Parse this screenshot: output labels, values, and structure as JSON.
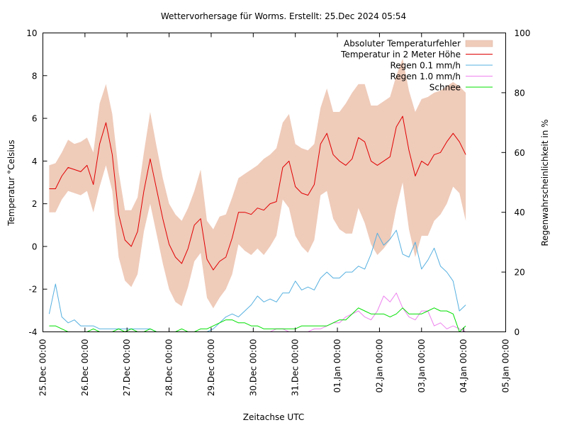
{
  "chart_data": {
    "type": "line",
    "title": "Wettervorhersage für Worms. Erstellt: 25.Dec 2024 05:54",
    "xlabel": "Zeitachse UTC",
    "ylabel": "Temperatur °Celsius",
    "y2label": "Regenwahrscheinlichkeit in %",
    "ylim": [
      -4,
      10
    ],
    "y2lim": [
      0,
      100
    ],
    "yticks": [
      "10",
      "8",
      "6",
      "4",
      "2",
      "0",
      "-2",
      "-4"
    ],
    "yticks_values": [
      10,
      8,
      6,
      4,
      2,
      0,
      -2,
      -4
    ],
    "y2ticks": [
      "100",
      "80",
      "60",
      "40",
      "20",
      "0"
    ],
    "y2ticks_values": [
      100,
      80,
      60,
      40,
      20,
      0
    ],
    "xlim_days": [
      0,
      11
    ],
    "xticks": [
      "25.Dec 00:00",
      "26.Dec 00:00",
      "27.Dec 00:00",
      "28.Dec 00:00",
      "29.Dec 00:00",
      "30.Dec 00:00",
      "31.Dec 00:00",
      "01.Jan 00:00",
      "02.Jan 00:00",
      "03.Jan 00:00",
      "04.Jan 00:00",
      "05.Jan 00:00"
    ],
    "grid": false,
    "legend_position": "top-right",
    "legend": [
      {
        "label": "Absoluter Temperaturfehler",
        "color": "#efcbba",
        "kind": "band"
      },
      {
        "label": "Temperatur in 2 Meter Höhe",
        "color": "#e00000",
        "kind": "line"
      },
      {
        "label": "Regen 0.1 mm/h",
        "color": "#56b0e0",
        "kind": "line"
      },
      {
        "label": "Regen 1.0 mm/h",
        "color": "#ee82ee",
        "kind": "line"
      },
      {
        "label": "Schnee",
        "color": "#00e000",
        "kind": "line"
      }
    ],
    "x_days": [
      0.15,
      0.3,
      0.45,
      0.6,
      0.75,
      0.9,
      1.05,
      1.2,
      1.35,
      1.5,
      1.65,
      1.8,
      1.95,
      2.1,
      2.25,
      2.4,
      2.55,
      2.7,
      2.85,
      3.0,
      3.15,
      3.3,
      3.45,
      3.6,
      3.75,
      3.9,
      4.05,
      4.2,
      4.35,
      4.5,
      4.65,
      4.8,
      4.95,
      5.1,
      5.25,
      5.4,
      5.55,
      5.7,
      5.85,
      6.0,
      6.15,
      6.3,
      6.45,
      6.6,
      6.75,
      6.9,
      7.05,
      7.2,
      7.35,
      7.5,
      7.65,
      7.8,
      7.95,
      8.1,
      8.25,
      8.4,
      8.55,
      8.7,
      8.85,
      9.0,
      9.15,
      9.3,
      9.45,
      9.6,
      9.75,
      9.9,
      10.05
    ],
    "series": [
      {
        "name": "Temperatur in 2 Meter Höhe",
        "axis": "y1",
        "values": [
          2.7,
          2.7,
          3.3,
          3.7,
          3.6,
          3.5,
          3.8,
          2.9,
          4.8,
          5.8,
          4.3,
          1.5,
          0.3,
          0.0,
          0.7,
          2.6,
          4.1,
          2.7,
          1.3,
          0.1,
          -0.5,
          -0.8,
          -0.1,
          1.0,
          1.3,
          -0.6,
          -1.1,
          -0.7,
          -0.5,
          0.4,
          1.6,
          1.6,
          1.5,
          1.8,
          1.7,
          2.0,
          2.1,
          3.7,
          4.0,
          2.8,
          2.5,
          2.4,
          2.9,
          4.8,
          5.3,
          4.3,
          4.0,
          3.8,
          4.1,
          5.1,
          4.9,
          4.0,
          3.8,
          4.0,
          4.2,
          5.6,
          6.1,
          4.5,
          3.3,
          4.0,
          3.8,
          4.3,
          4.4,
          4.9,
          5.3,
          4.9,
          4.3
        ]
      },
      {
        "name": "Absoluter Temperaturfehler (untere Grenze)",
        "axis": "y1",
        "values": [
          1.6,
          1.6,
          2.2,
          2.6,
          2.5,
          2.4,
          2.6,
          1.6,
          2.8,
          3.8,
          2.6,
          -0.5,
          -1.6,
          -1.9,
          -1.3,
          0.7,
          2.0,
          0.6,
          -0.8,
          -2.0,
          -2.6,
          -2.8,
          -1.9,
          -0.7,
          -0.3,
          -2.4,
          -2.9,
          -2.4,
          -2.0,
          -1.3,
          0.1,
          -0.2,
          -0.4,
          -0.1,
          -0.4,
          0.0,
          0.5,
          2.2,
          1.8,
          0.5,
          0.0,
          -0.3,
          0.3,
          2.4,
          2.6,
          1.3,
          0.8,
          0.6,
          0.6,
          1.8,
          1.1,
          0.1,
          -0.4,
          -0.1,
          0.3,
          1.8,
          3.0,
          0.8,
          -0.5,
          0.5,
          0.5,
          1.2,
          1.5,
          2.0,
          2.8,
          2.5,
          1.2
        ]
      },
      {
        "name": "Absoluter Temperaturfehler (obere Grenze)",
        "axis": "y1",
        "values": [
          3.8,
          3.9,
          4.4,
          5.0,
          4.8,
          4.9,
          5.1,
          4.4,
          6.7,
          7.6,
          6.2,
          3.5,
          1.7,
          1.7,
          2.3,
          4.4,
          6.3,
          4.7,
          3.2,
          2.0,
          1.5,
          1.2,
          1.8,
          2.6,
          3.6,
          1.2,
          0.8,
          1.4,
          1.5,
          2.3,
          3.2,
          3.4,
          3.6,
          3.8,
          4.1,
          4.3,
          4.6,
          5.8,
          6.2,
          4.8,
          4.6,
          4.5,
          4.8,
          6.5,
          7.4,
          6.3,
          6.3,
          6.7,
          7.2,
          7.6,
          7.6,
          6.6,
          6.6,
          6.8,
          7.0,
          8.0,
          8.8,
          7.3,
          6.3,
          6.9,
          7.0,
          7.2,
          7.3,
          7.5,
          7.7,
          7.5,
          7.2
        ]
      },
      {
        "name": "Regen 0.1 mm/h",
        "axis": "y2",
        "values": [
          6,
          16,
          5,
          3,
          4,
          2,
          2,
          2,
          1,
          1,
          1,
          1,
          1,
          1,
          1,
          1,
          1,
          0,
          0,
          0,
          0,
          0,
          0,
          0,
          0,
          0,
          1,
          3,
          5,
          6,
          5,
          7,
          9,
          12,
          10,
          11,
          10,
          13,
          13,
          17,
          14,
          15,
          14,
          18,
          20,
          18,
          18,
          20,
          20,
          22,
          21,
          26,
          33,
          29,
          31,
          34,
          26,
          25,
          30,
          21,
          24,
          28,
          22,
          20,
          17,
          7,
          9
        ]
      },
      {
        "name": "Regen 1.0 mm/h",
        "axis": "y2",
        "values": [
          0,
          0,
          0,
          0,
          0,
          0,
          0,
          0,
          0,
          0,
          0,
          0,
          0,
          0,
          0,
          0,
          0,
          0,
          0,
          0,
          0,
          0,
          0,
          0,
          0,
          0,
          0,
          0,
          0,
          0,
          0,
          0,
          0,
          0,
          0,
          0,
          1,
          1,
          0,
          0,
          0,
          0,
          1,
          1,
          2,
          3,
          3,
          5,
          6,
          7,
          5,
          4,
          7,
          12,
          10,
          13,
          8,
          5,
          4,
          7,
          7,
          2,
          3,
          1,
          2,
          1,
          0
        ]
      },
      {
        "name": "Schnee",
        "axis": "y2",
        "values": [
          2,
          2,
          1,
          0,
          0,
          0,
          0,
          1,
          0,
          0,
          0,
          1,
          0,
          1,
          0,
          0,
          1,
          0,
          0,
          0,
          0,
          1,
          0,
          0,
          1,
          1,
          2,
          3,
          4,
          4,
          3,
          3,
          2,
          2,
          1,
          1,
          1,
          1,
          1,
          1,
          2,
          2,
          2,
          2,
          2,
          3,
          4,
          4,
          6,
          8,
          7,
          6,
          6,
          6,
          5,
          6,
          8,
          6,
          6,
          6,
          7,
          8,
          7,
          7,
          6,
          0,
          2
        ]
      }
    ]
  }
}
